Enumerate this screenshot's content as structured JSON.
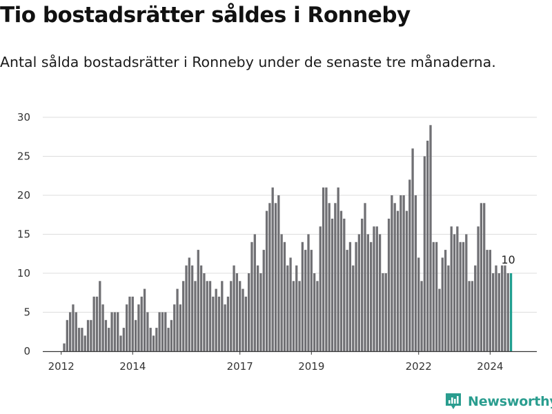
{
  "title": "Tio bostadsrätter såldes i Ronneby",
  "subtitle": "Antal sålda bostadsrätter i Ronneby under de senaste tre månaderna.",
  "brand": {
    "name": "Newsworthy",
    "color": "#2a9d8f",
    "icon": "bar-chart-logo-icon"
  },
  "chart_data": {
    "type": "bar",
    "xlabel": "",
    "ylabel": "",
    "ylim": [
      0,
      30
    ],
    "yticks": [
      0,
      5,
      10,
      15,
      20,
      25,
      30
    ],
    "xtick_labels": [
      "2012",
      "2014",
      "2017",
      "2019",
      "2022",
      "2024"
    ],
    "grid": true,
    "bar_color": "#707074",
    "highlight_color": "#1f9e8f",
    "highlight_label": "10",
    "values": [
      1,
      4,
      5,
      6,
      5,
      3,
      3,
      2,
      4,
      4,
      7,
      7,
      9,
      6,
      4,
      3,
      5,
      5,
      5,
      2,
      3,
      6,
      7,
      7,
      4,
      6,
      7,
      8,
      5,
      3,
      2,
      3,
      5,
      5,
      5,
      3,
      4,
      6,
      8,
      6,
      9,
      11,
      12,
      11,
      9,
      13,
      11,
      10,
      9,
      9,
      7,
      8,
      7,
      9,
      6,
      7,
      9,
      11,
      10,
      9,
      8,
      7,
      10,
      14,
      15,
      11,
      10,
      13,
      18,
      19,
      21,
      19,
      20,
      15,
      14,
      11,
      12,
      9,
      11,
      9,
      14,
      13,
      15,
      13,
      10,
      9,
      16,
      21,
      21,
      19,
      17,
      19,
      21,
      18,
      17,
      13,
      14,
      11,
      14,
      15,
      17,
      19,
      15,
      14,
      16,
      16,
      15,
      10,
      10,
      17,
      20,
      19,
      18,
      20,
      20,
      18,
      22,
      26,
      20,
      12,
      9,
      25,
      27,
      29,
      14,
      14,
      8,
      12,
      13,
      11,
      16,
      15,
      16,
      14,
      14,
      15,
      9,
      9,
      11,
      16,
      19,
      19,
      13,
      13,
      10,
      11,
      10,
      11,
      11,
      10,
      10
    ]
  }
}
